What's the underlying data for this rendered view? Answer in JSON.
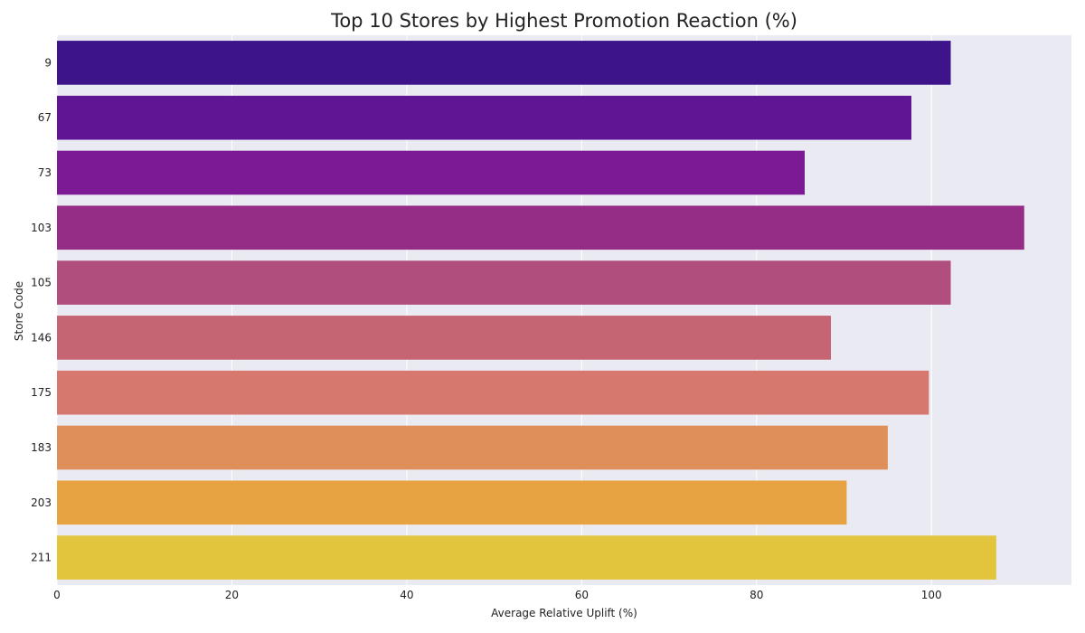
{
  "chart_data": {
    "type": "bar",
    "orientation": "horizontal",
    "title": "Top 10 Stores by Highest Promotion Reaction (%)",
    "xlabel": "Average Relative Uplift (%)",
    "ylabel": "Store Code",
    "categories": [
      "9",
      "67",
      "73",
      "103",
      "105",
      "146",
      "175",
      "183",
      "203",
      "211"
    ],
    "values": [
      102.2,
      97.7,
      85.5,
      110.6,
      102.2,
      88.5,
      99.7,
      95.0,
      90.3,
      107.4
    ],
    "colors": [
      "#3d1489",
      "#601594",
      "#7b1a94",
      "#952d87",
      "#b04e7e",
      "#c56473",
      "#d6786d",
      "#df8f5a",
      "#e7a241",
      "#e2c43d"
    ],
    "xlim": [
      0,
      116
    ],
    "xticks": [
      0,
      20,
      40,
      60,
      80,
      100
    ],
    "grid": true,
    "background": "#eaeaf2"
  }
}
